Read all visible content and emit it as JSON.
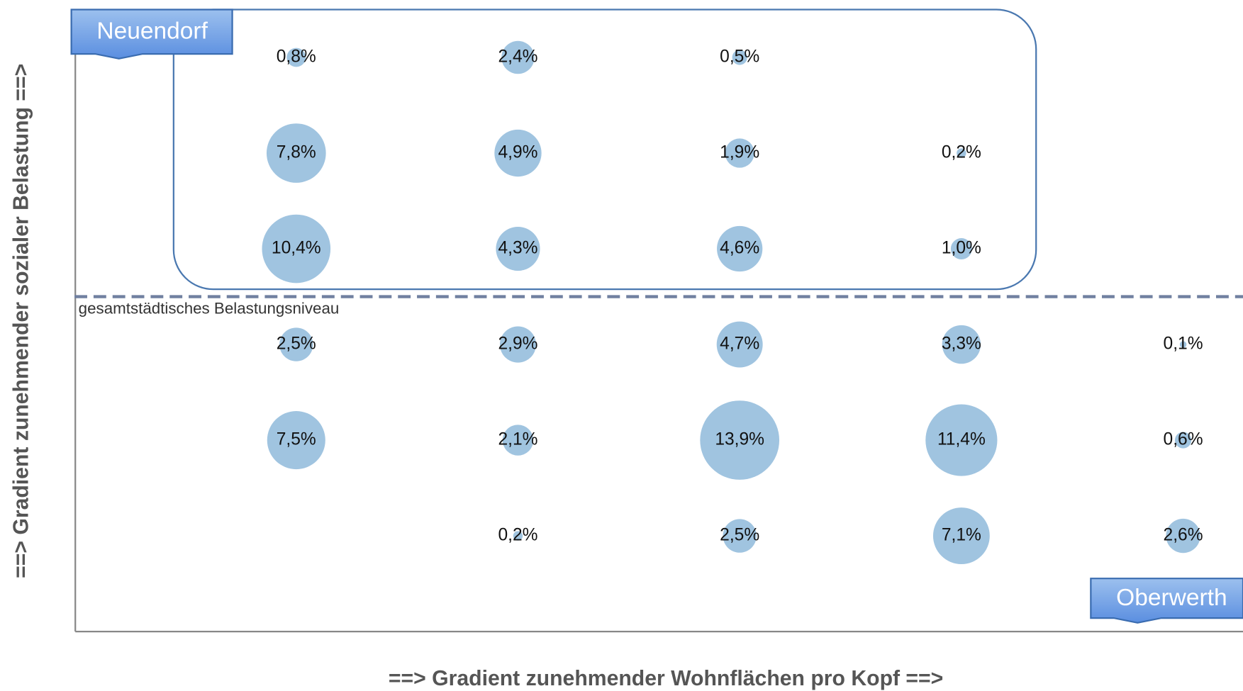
{
  "chart_data": {
    "type": "bubble",
    "x_label": "==> Gradient zunehmender Wohnflächen pro Kopf ==>",
    "y_label": "==> Gradient zunehmender sozialer Belastung ==>",
    "xlim": [
      0,
      5.27
    ],
    "ylim": [
      0,
      6.02
    ],
    "color": "#a0c4e0",
    "x": [
      1,
      2,
      3,
      1,
      2,
      3,
      4,
      1,
      2,
      3,
      4,
      1,
      2,
      3,
      4,
      5,
      1,
      2,
      3,
      4,
      5,
      2,
      3,
      4,
      5
    ],
    "y": [
      6,
      6,
      6,
      5,
      5,
      5,
      5,
      4,
      4,
      4,
      4,
      3,
      3,
      3,
      3,
      3,
      2,
      2,
      2,
      2,
      2,
      1,
      1,
      1,
      1
    ],
    "values": [
      0.8,
      2.4,
      0.5,
      7.8,
      4.9,
      1.9,
      0.2,
      10.4,
      4.3,
      4.6,
      1.0,
      2.5,
      2.9,
      4.7,
      3.3,
      0.1,
      7.5,
      2.1,
      13.9,
      11.4,
      0.6,
      0.2,
      2.5,
      7.1,
      2.6
    ],
    "value_labels": [
      "0,8%",
      "2,4%",
      "0,5%",
      "7,8%",
      "4,9%",
      "1,9%",
      "0,2%",
      "10,4%",
      "4,3%",
      "4,6%",
      "1,0%",
      "2,5%",
      "2,9%",
      "4,7%",
      "3,3%",
      "0,1%",
      "7,5%",
      "2,1%",
      "13,9%",
      "11,4%",
      "0,6%",
      "0,2%",
      "2,5%",
      "7,1%",
      "2,6%"
    ],
    "reference_line": {
      "value": 3.5,
      "label": "gesamtstädtisches Belastungsniveau"
    },
    "annotations": [
      "Neuendorf",
      "Oberwerth"
    ]
  }
}
